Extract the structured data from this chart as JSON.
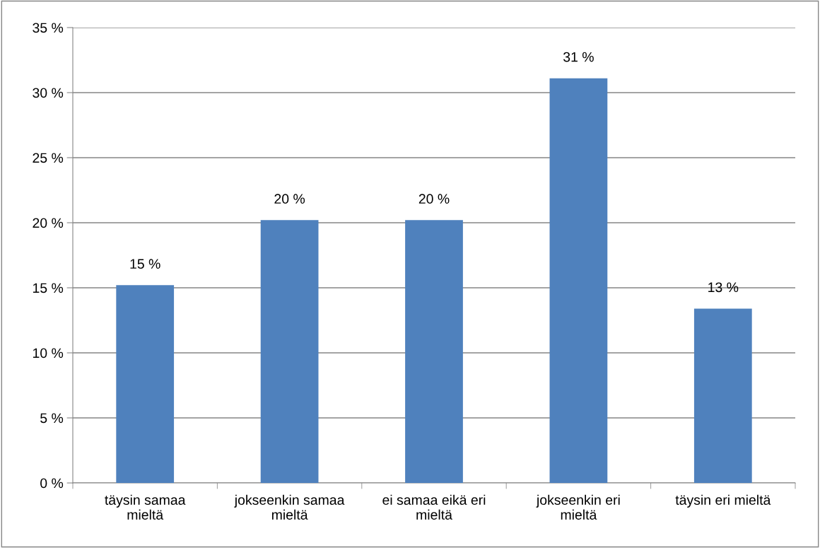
{
  "chart_data": {
    "type": "bar",
    "categories": [
      "täysin samaa\nmieltä",
      "jokseenkin samaa\nmieltä",
      "ei samaa eikä eri\nmieltä",
      "jokseenkin eri\nmieltä",
      "täysin eri mieltä"
    ],
    "values": [
      15.2,
      20.2,
      20.2,
      31.1,
      13.4
    ],
    "value_labels": [
      "15 %",
      "20 %",
      "20 %",
      "31 %",
      "13 %"
    ],
    "color": "#4f81bd",
    "ylim": [
      0,
      35
    ],
    "yticks": [
      {
        "value": 0,
        "label": "0 %"
      },
      {
        "value": 5,
        "label": "5 %"
      },
      {
        "value": 10,
        "label": "10 %"
      },
      {
        "value": 15,
        "label": "15 %"
      },
      {
        "value": 20,
        "label": "20 %"
      },
      {
        "value": 25,
        "label": "25 %"
      },
      {
        "value": 30,
        "label": "30 %"
      },
      {
        "value": 35,
        "label": "35 %"
      }
    ],
    "grid": "y"
  }
}
